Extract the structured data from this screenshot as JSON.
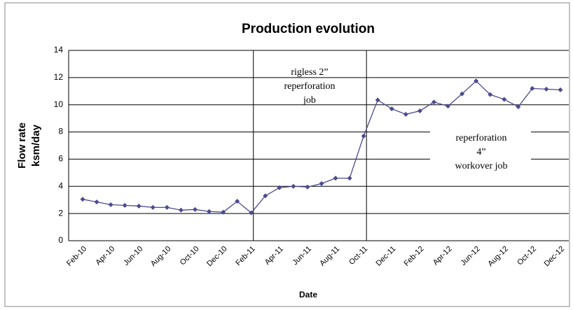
{
  "chart_data": {
    "type": "line",
    "title": "Production evolution",
    "xlabel": "Date",
    "ylabel": [
      "Flow rate",
      "ksm/day"
    ],
    "categories": [
      "Feb-10",
      null,
      "Apr-10",
      null,
      "Jun-10",
      null,
      "Aug-10",
      null,
      "Oct-10",
      null,
      "Dec-10",
      null,
      "Feb-11",
      null,
      "Apr-11",
      null,
      "Jun-11",
      null,
      "Aug-11",
      null,
      "Oct-11",
      null,
      "Dec-11",
      null,
      "Feb-12",
      null,
      "Apr-12",
      null,
      "Jun-12",
      null,
      "Aug-12",
      null,
      "Oct-12",
      null,
      "Dec-12"
    ],
    "series": [
      {
        "color": "#4b4b8f",
        "values": [
          3.05,
          2.85,
          2.65,
          2.6,
          2.55,
          2.45,
          2.45,
          2.25,
          2.3,
          2.15,
          2.1,
          2.9,
          2.05,
          3.3,
          3.9,
          4.0,
          3.95,
          4.2,
          4.6,
          4.6,
          7.7,
          10.35,
          9.7,
          9.3,
          9.55,
          10.2,
          9.9,
          10.8,
          11.75,
          10.75,
          10.4,
          9.85,
          11.2,
          11.15,
          11.1
        ]
      }
    ],
    "ylim": [
      0,
      14
    ],
    "yticks": [
      0,
      2,
      4,
      6,
      8,
      10,
      12,
      14
    ],
    "grid": true,
    "annotations": [
      {
        "lines": [
          "rigless 2”",
          "reperforation",
          "job"
        ]
      },
      {
        "lines": [
          "reperforation",
          "4”",
          "workover job"
        ]
      }
    ]
  }
}
